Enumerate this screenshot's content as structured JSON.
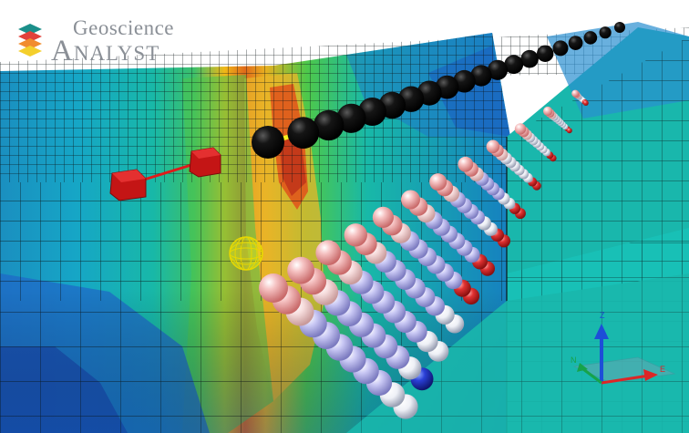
{
  "app": {
    "logo_line1": "Geoscience",
    "logo_line2": "Analyst"
  },
  "axes_triad": {
    "z_label": "Z",
    "n_label": "N",
    "e_label": "E"
  },
  "colors": {
    "sky": "#ffffff",
    "grid_line": "#0b1416",
    "block_low": "#1f5fc0",
    "block_mid": "#13b9b4",
    "block_high": "#c43a1a",
    "receiver_pink": "#f0a9a9",
    "receiver_lavender": "#b9b8ee",
    "receiver_red": "#dc2626",
    "flight_line": "#050505",
    "transmitter": "#d81b1b",
    "target_marker": "#f7f01c",
    "axis_z": "#1d4ed8",
    "axis_n": "#16a34a",
    "axis_e": "#dc2626"
  }
}
